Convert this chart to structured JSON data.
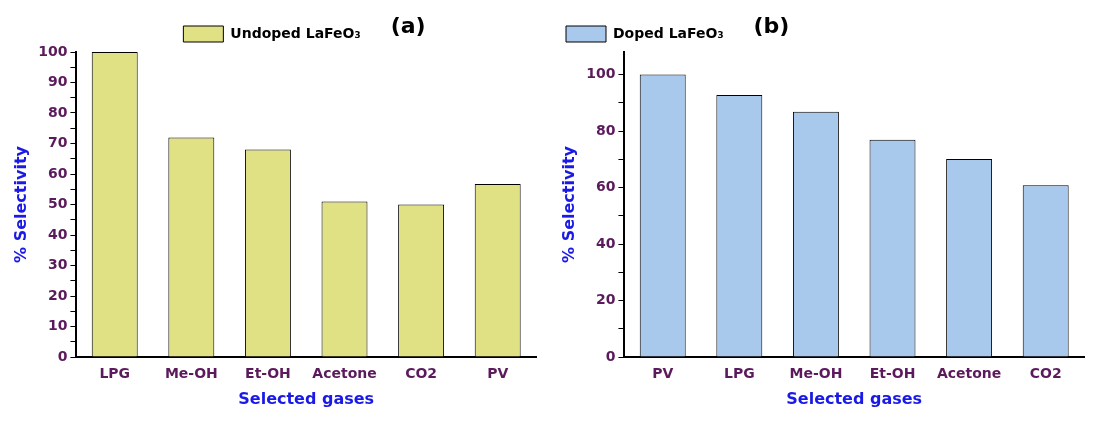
{
  "chart_data": [
    {
      "type": "bar",
      "title": "(a)",
      "xlabel": "Selected gases",
      "ylabel": "% Selectivity",
      "categories": [
        "LPG",
        "Me-OH",
        "Et-OH",
        "Acetone",
        "CO2",
        "PV"
      ],
      "series": [
        {
          "name": "Undoped LaFeO₃",
          "color": "#e0e085",
          "values": [
            100,
            72,
            68,
            51,
            50,
            56.7
          ]
        }
      ],
      "ylim": [
        0,
        100
      ],
      "yticks": [
        0,
        {
          "value": 5,
          "label": null
        },
        10,
        {
          "value": 15,
          "label": null
        },
        20,
        {
          "value": 25,
          "label": null
        },
        30,
        {
          "value": 35,
          "label": null
        },
        40,
        {
          "value": 45,
          "label": null
        },
        50,
        {
          "value": 55,
          "label": null
        },
        60,
        {
          "value": 65,
          "label": null
        },
        70,
        {
          "value": 75,
          "label": null
        },
        80,
        {
          "value": 85,
          "label": null
        },
        90,
        {
          "value": 95,
          "label": null
        },
        100
      ],
      "grid": false,
      "legend": "top"
    },
    {
      "type": "bar",
      "title": "(b)",
      "xlabel": "Selected gases",
      "ylabel": "% Selectivity",
      "categories": [
        "PV",
        "LPG",
        "Me-OH",
        "Et-OH",
        "Acetone",
        "CO2"
      ],
      "series": [
        {
          "name": "Doped LaFeO₃",
          "color": "#a8c8ec",
          "values": [
            100,
            92.8,
            86.8,
            76.9,
            70.1,
            60.8
          ]
        }
      ],
      "ylim": [
        0,
        108
      ],
      "yticks": [
        0,
        {
          "value": 10,
          "label": null
        },
        20,
        {
          "value": 30,
          "label": null
        },
        40,
        {
          "value": 50,
          "label": null
        },
        60,
        {
          "value": 70,
          "label": null
        },
        80,
        {
          "value": 90,
          "label": null
        },
        100
      ],
      "grid": false,
      "legend": "top left"
    }
  ]
}
